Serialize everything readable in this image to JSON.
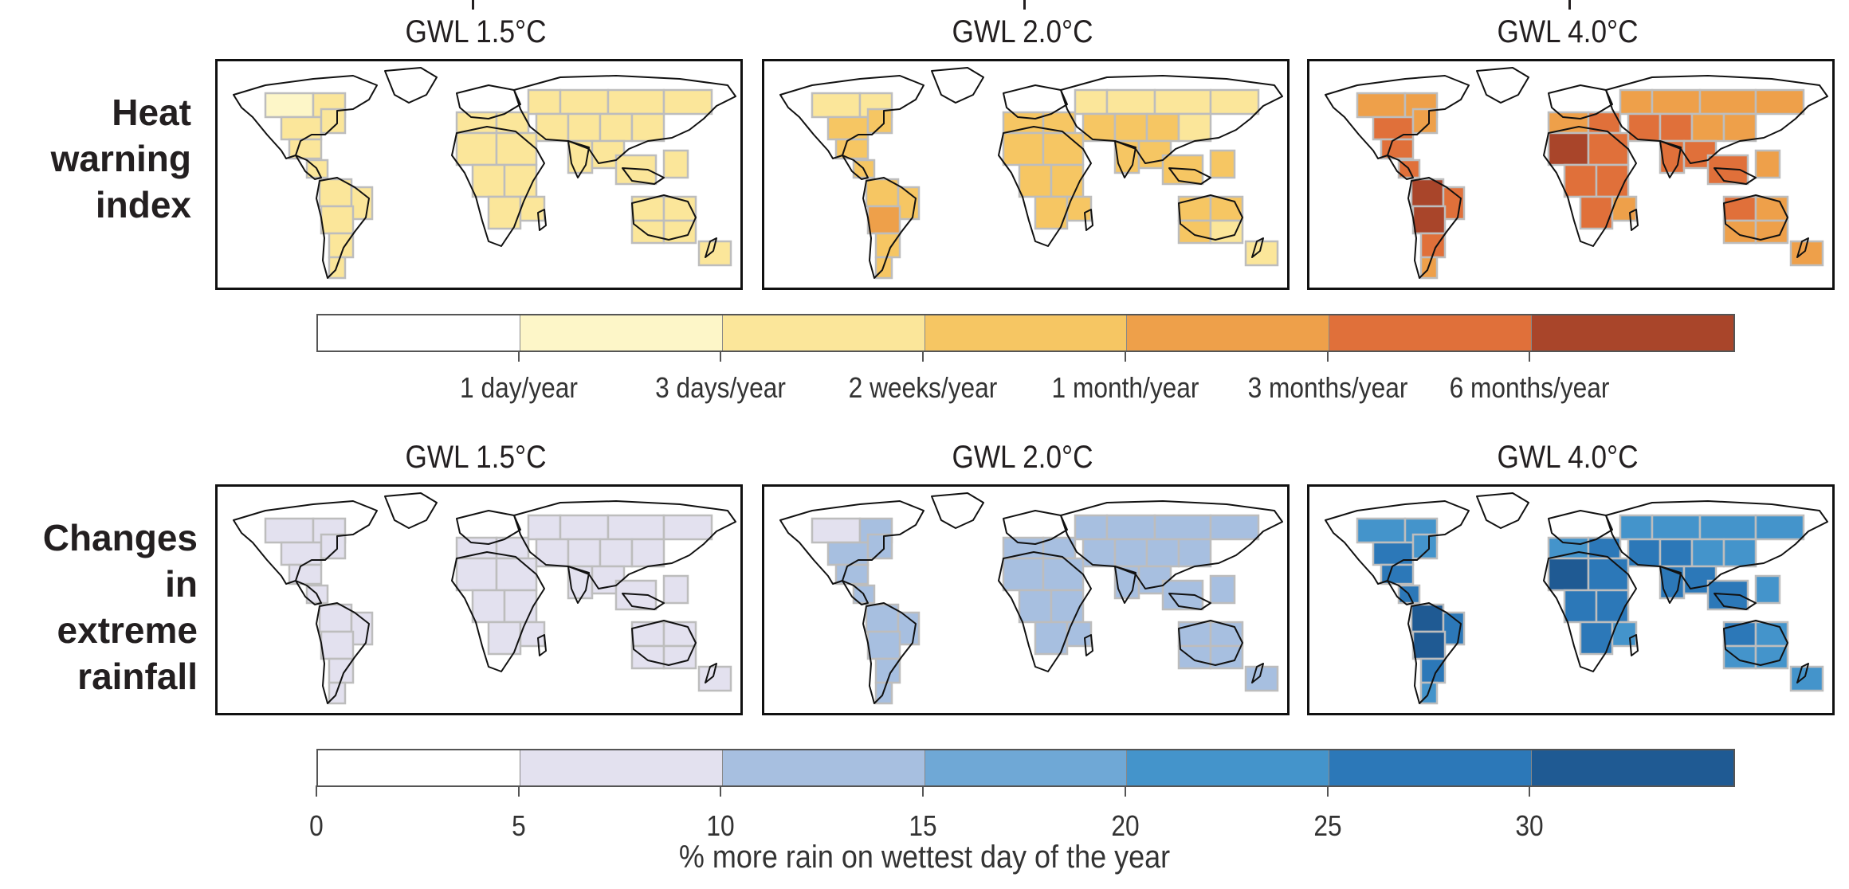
{
  "rows": [
    {
      "id": "heat",
      "label_lines": [
        "Heat",
        "warning",
        "index"
      ],
      "panels": [
        {
          "title": "GWL 1.5°C",
          "level": 2
        },
        {
          "title": "GWL 2.0°C",
          "level": 3
        },
        {
          "title": "GWL 4.0°C",
          "level": 5
        }
      ],
      "colorbar": {
        "colors": [
          "#ffffff",
          "#fdf6c8",
          "#fbe69a",
          "#f6c663",
          "#eea04a",
          "#e0703a",
          "#a9452a"
        ],
        "labels": [
          "1 day/year",
          "3 days/year",
          "2 weeks/year",
          "1 month/year",
          "3 months/year",
          "6 months/year"
        ],
        "title": ""
      }
    },
    {
      "id": "rain",
      "label_lines": [
        "Changes in",
        "extreme",
        "rainfall"
      ],
      "panels": [
        {
          "title": "GWL 1.5°C",
          "level": 1
        },
        {
          "title": "GWL 2.0°C",
          "level": 2
        },
        {
          "title": "GWL 4.0°C",
          "level": 5
        }
      ],
      "colorbar": {
        "colors": [
          "#ffffff",
          "#e3e1ef",
          "#a7bfe0",
          "#6fa8d6",
          "#4494cb",
          "#2c78b8",
          "#1f5a93"
        ],
        "labels": [
          "0",
          "5",
          "10",
          "15",
          "20",
          "25",
          "30"
        ],
        "title": "% more rain on wettest day of the year"
      }
    }
  ]
}
